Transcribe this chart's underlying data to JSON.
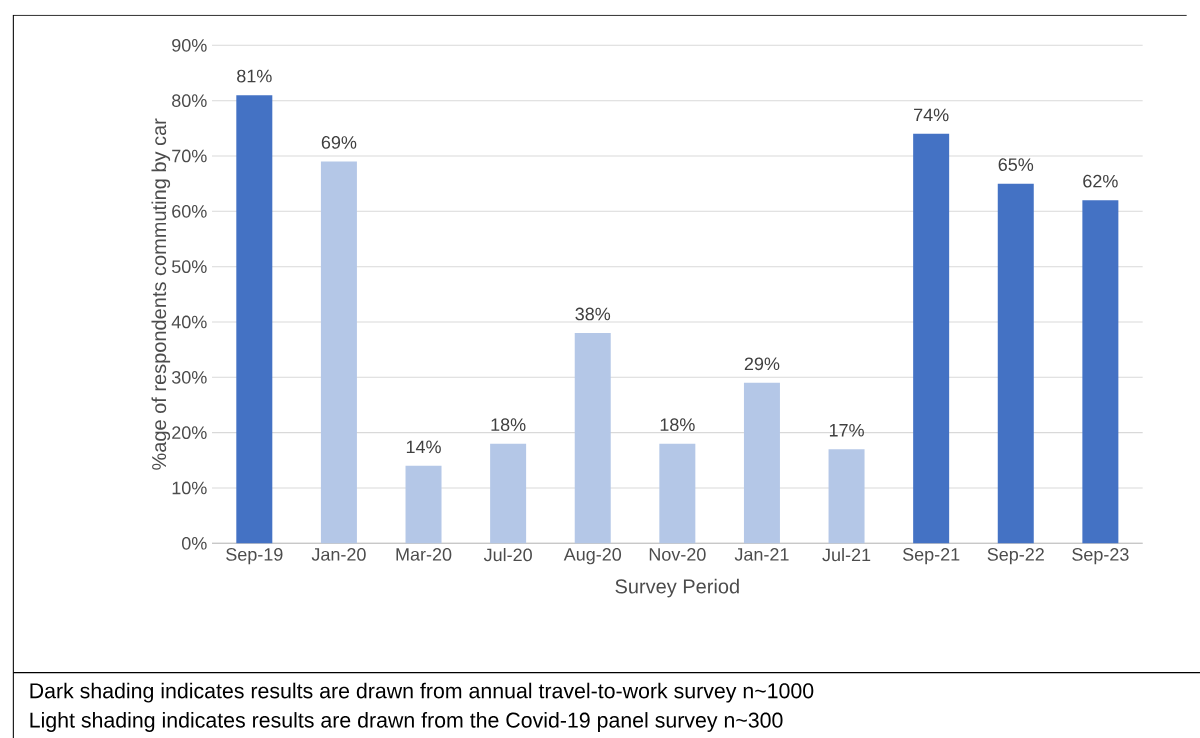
{
  "chart_data": {
    "type": "bar",
    "categories": [
      "Sep-19",
      "Jan-20",
      "Mar-20",
      "Jul-20",
      "Aug-20",
      "Nov-20",
      "Jan-21",
      "Jul-21",
      "Sep-21",
      "Sep-22",
      "Sep-23"
    ],
    "values": [
      81,
      69,
      14,
      18,
      38,
      18,
      29,
      17,
      74,
      65,
      62
    ],
    "value_labels": [
      "81%",
      "69%",
      "14%",
      "18%",
      "38%",
      "18%",
      "29%",
      "17%",
      "74%",
      "65%",
      "62%"
    ],
    "colors": [
      "#4472c4",
      "#b4c7e7",
      "#b4c7e7",
      "#b4c7e7",
      "#b4c7e7",
      "#b4c7e7",
      "#b4c7e7",
      "#b4c7e7",
      "#4472c4",
      "#4472c4",
      "#4472c4"
    ],
    "xlabel": "Survey Period",
    "ylabel": "%age of respondents commuting by car",
    "ylim": [
      0,
      90
    ],
    "yticks": [
      {
        "value": 0,
        "label": "0%"
      },
      {
        "value": 10,
        "label": "10%"
      },
      {
        "value": 20,
        "label": "20%"
      },
      {
        "value": 30,
        "label": "30%"
      },
      {
        "value": 40,
        "label": "40%"
      },
      {
        "value": 50,
        "label": "50%"
      },
      {
        "value": 60,
        "label": "60%"
      },
      {
        "value": 70,
        "label": "70%"
      },
      {
        "value": 80,
        "label": "80%"
      },
      {
        "value": 90,
        "label": "90%"
      }
    ],
    "grid": "y",
    "annotations": [
      "Dark shading indicates results are drawn from annual travel-to-work survey n~1000",
      "Light shading indicates results are drawn from the Covid-19 panel survey n~300"
    ]
  }
}
